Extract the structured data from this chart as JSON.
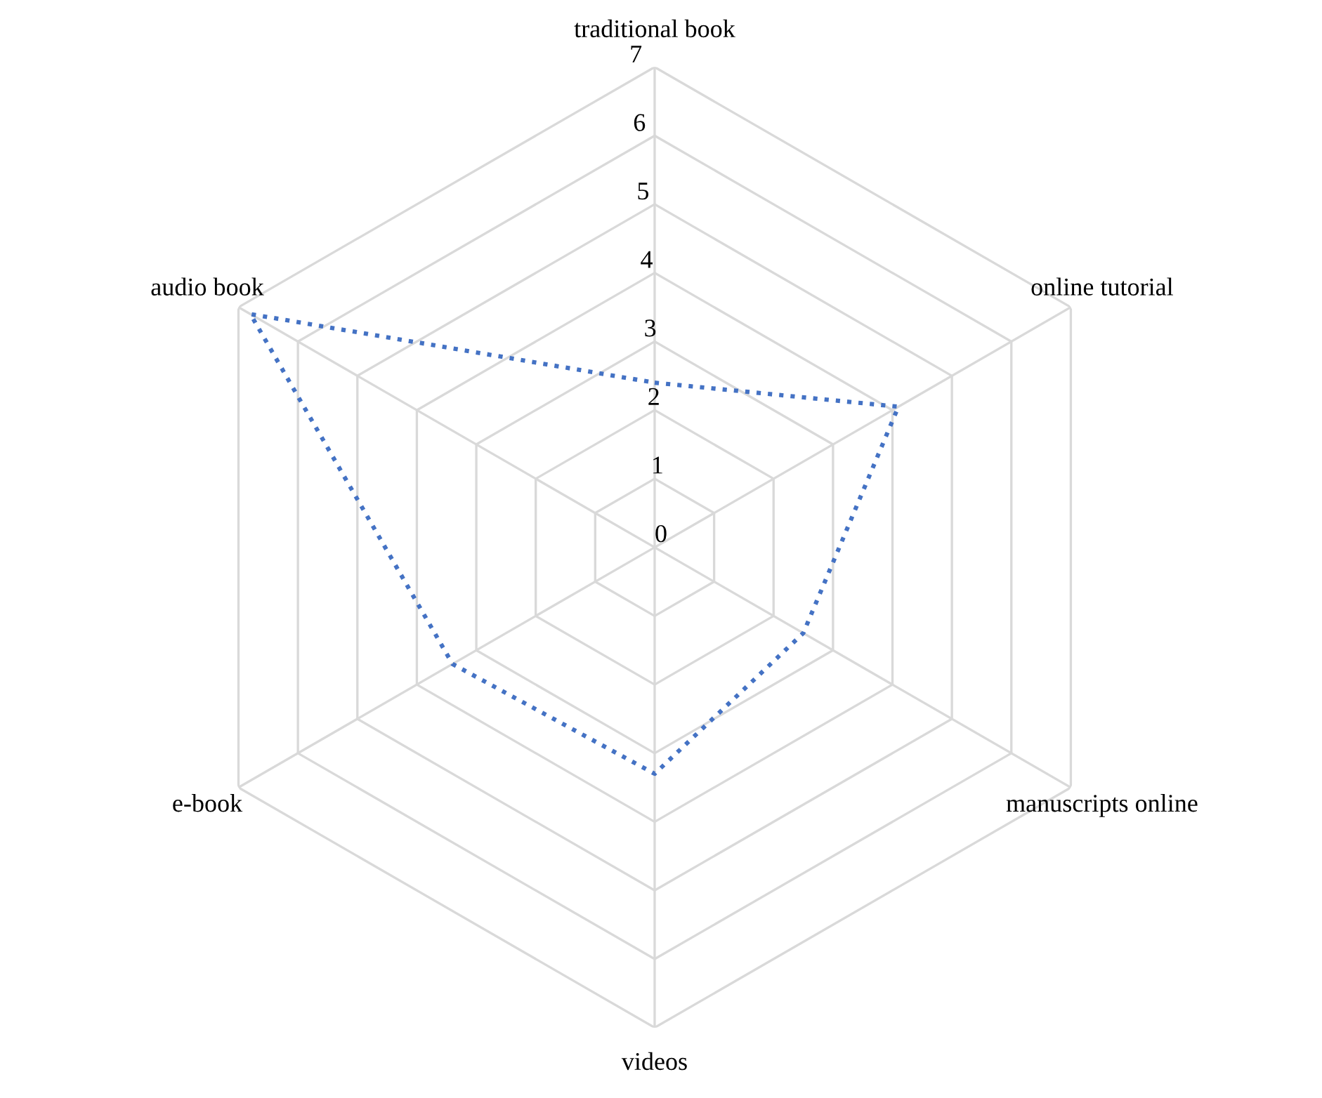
{
  "chart_data": {
    "type": "radar",
    "categories": [
      "traditional book",
      "online tutorial",
      "manuscripts online",
      "videos",
      "e-book",
      "audio book"
    ],
    "series": [
      {
        "color": "#4472c4",
        "values": [
          2.4,
          4.1,
          2.5,
          3.3,
          3.4,
          6.8
        ]
      }
    ],
    "ylim": [
      0,
      7
    ],
    "yticks": [
      0,
      1,
      2,
      3,
      4,
      5,
      6,
      7
    ],
    "grid": true,
    "line_style": "dotted",
    "marker": "none"
  }
}
